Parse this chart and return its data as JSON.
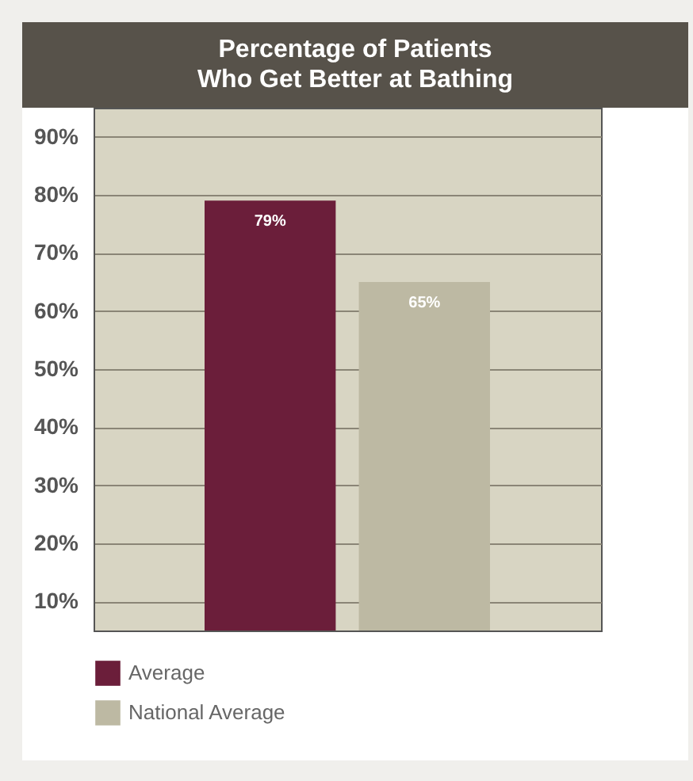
{
  "chart_data": {
    "type": "bar",
    "title": "Percentage of Patients\nWho Get Better at Bathing",
    "categories": [
      null
    ],
    "series": [
      {
        "name": "Average",
        "color": "#6b1e3a",
        "values": [
          79
        ]
      },
      {
        "name": "National Average",
        "color": "#bdb9a3",
        "values": [
          65
        ]
      }
    ],
    "ylim": [
      5,
      95
    ],
    "yticks": [
      {
        "value": 10,
        "label": "10%"
      },
      {
        "value": 20,
        "label": "20%"
      },
      {
        "value": 30,
        "label": "30%"
      },
      {
        "value": 40,
        "label": "40%"
      },
      {
        "value": 50,
        "label": "50%"
      },
      {
        "value": 60,
        "label": "60%"
      },
      {
        "value": 70,
        "label": "70%"
      },
      {
        "value": 80,
        "label": "80%"
      },
      {
        "value": 90,
        "label": "90%"
      }
    ],
    "value_labels": [
      "79%",
      "65%"
    ],
    "grid": "y",
    "legend": "bottom left"
  }
}
